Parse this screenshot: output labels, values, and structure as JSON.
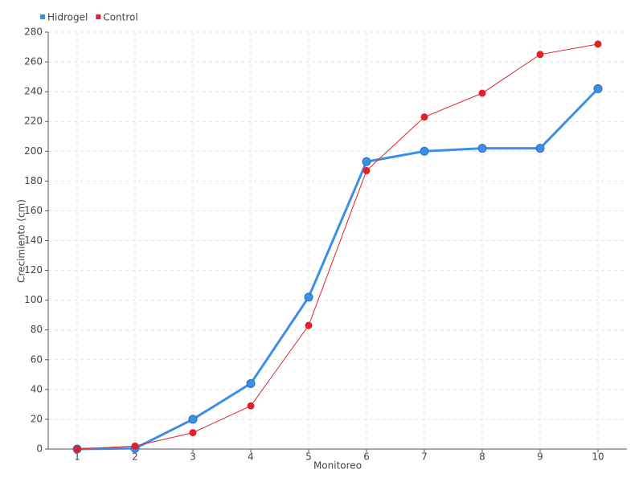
{
  "chart_data": {
    "type": "line",
    "x_label": "Monitoreo",
    "y_label": "Crecimiento (cm)",
    "categories": [
      "1",
      "2",
      "3",
      "4",
      "5",
      "6",
      "7",
      "8",
      "9",
      "10"
    ],
    "series": [
      {
        "name": "Hidrogel",
        "color": "#3d8ee8",
        "values": [
          0,
          0.5,
          20,
          44,
          102,
          193,
          200,
          202,
          202,
          242
        ]
      },
      {
        "name": "Control",
        "color": "#e0202a",
        "values": [
          0,
          2,
          11,
          29,
          83,
          187,
          223,
          239,
          265,
          272
        ]
      }
    ],
    "ylim": [
      0,
      280
    ],
    "yticks": [
      0,
      20,
      40,
      60,
      80,
      100,
      120,
      140,
      160,
      180,
      200,
      220,
      240,
      260,
      280
    ],
    "grid": true,
    "legend": "top-left"
  }
}
